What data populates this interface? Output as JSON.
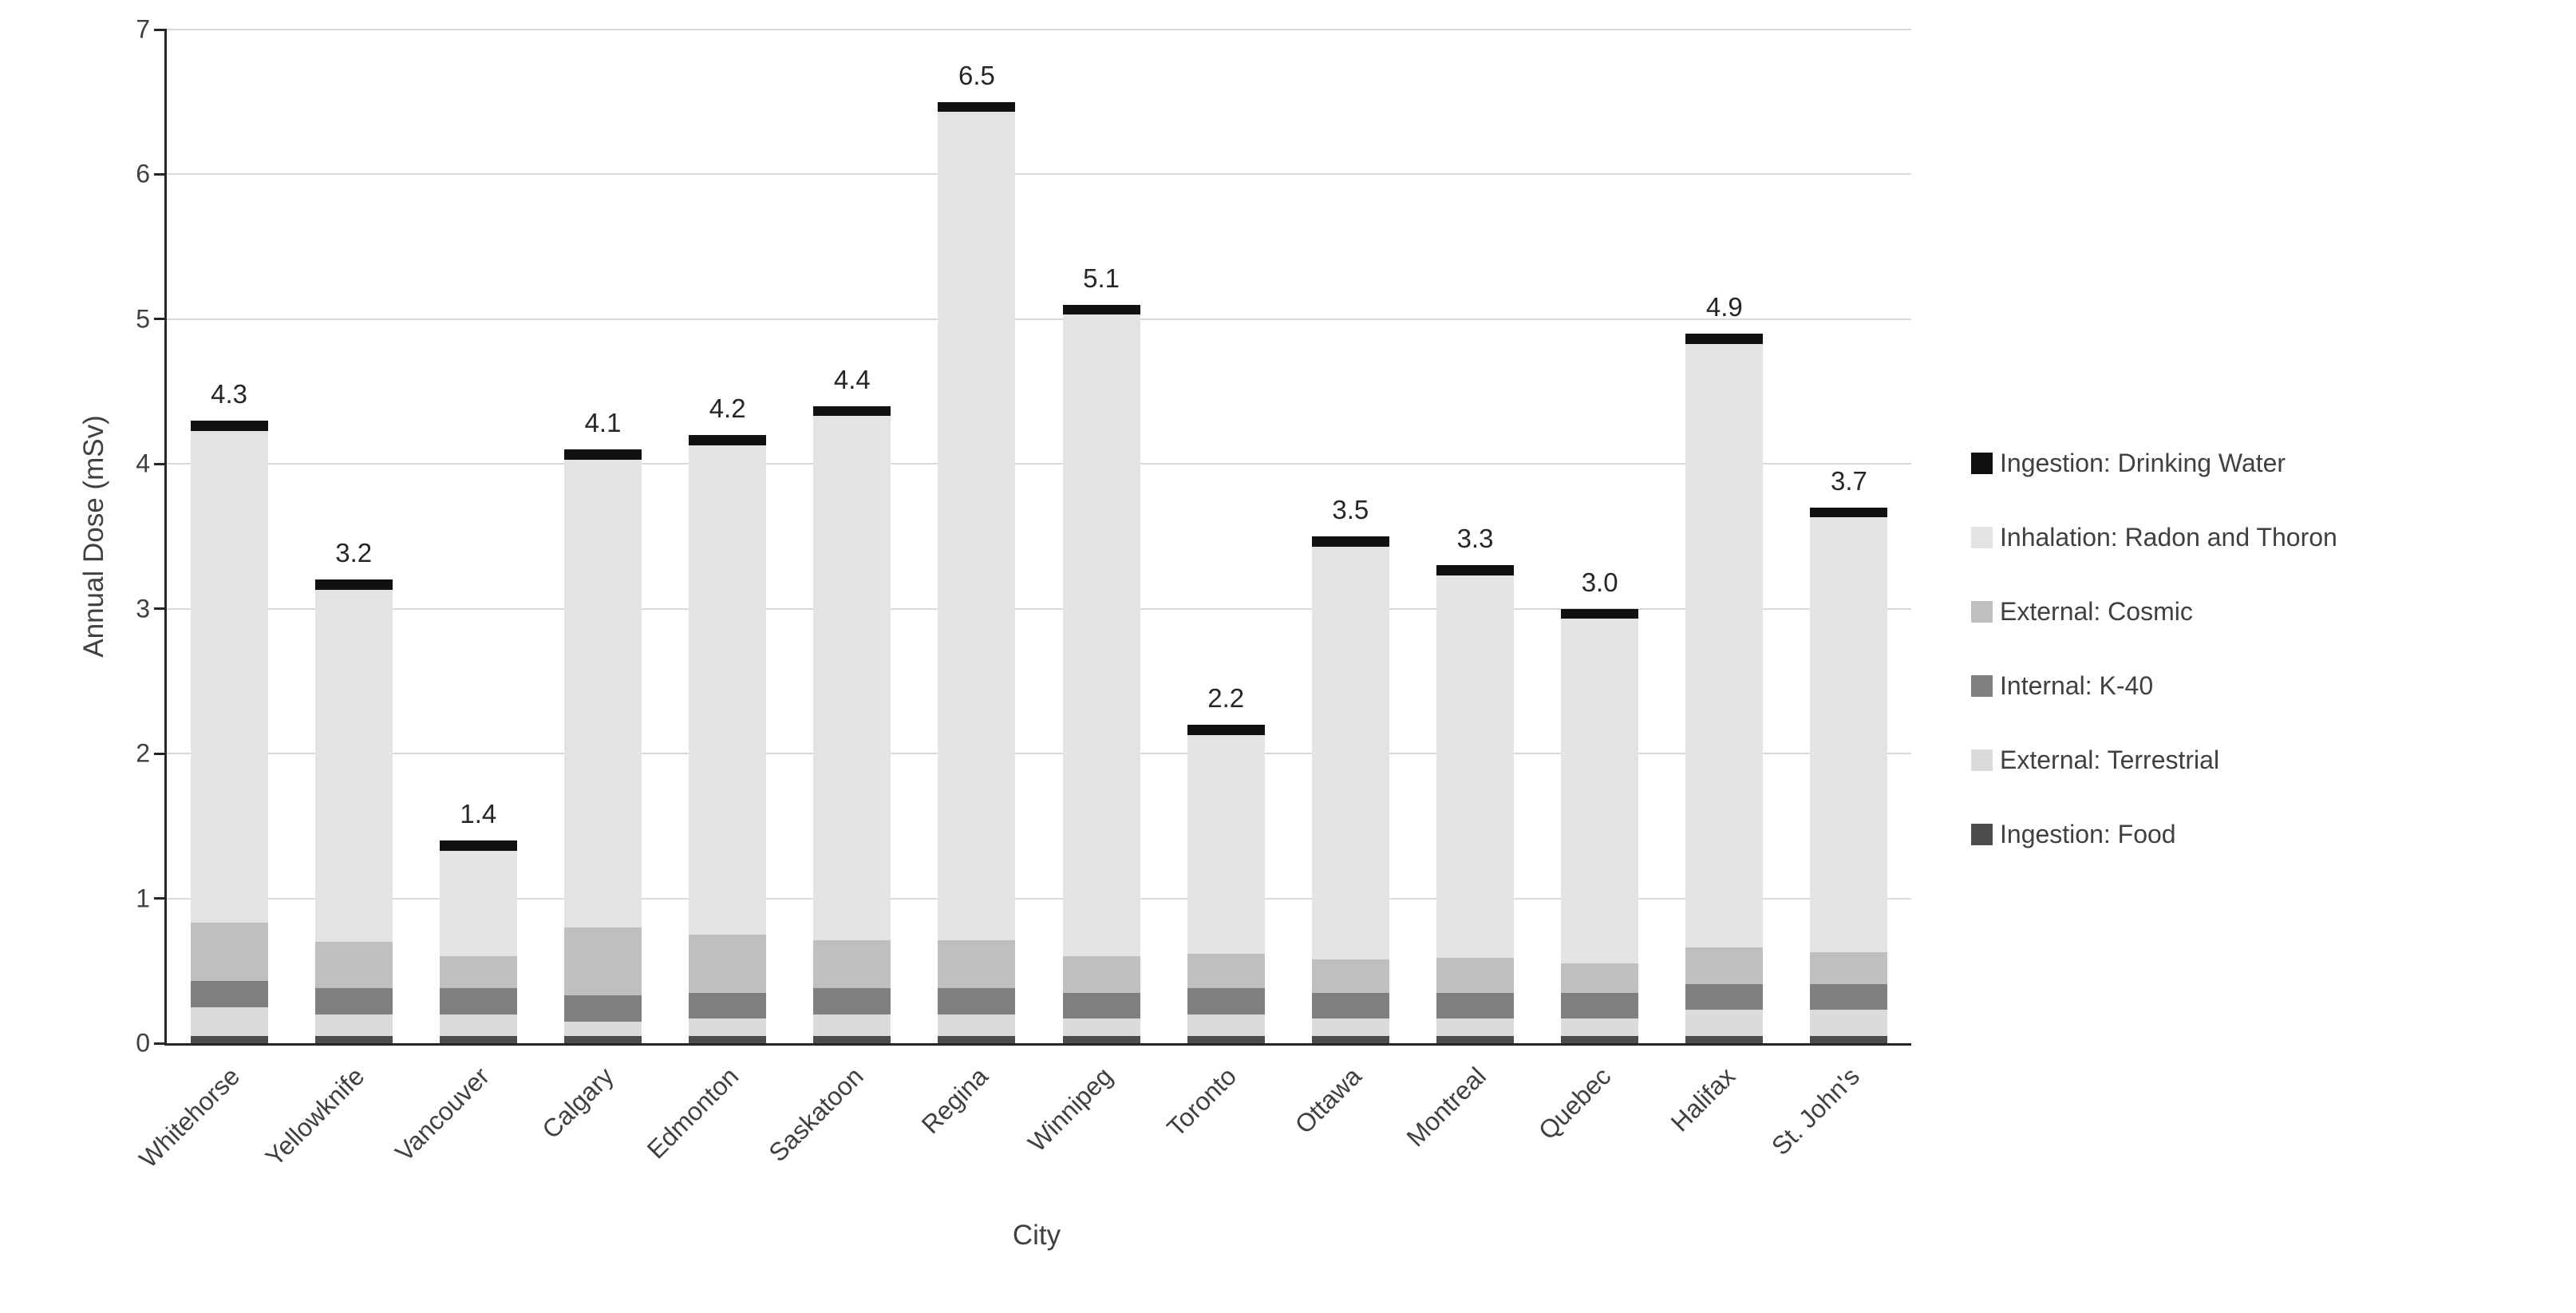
{
  "chart_data": {
    "type": "bar",
    "stacked": true,
    "title": "",
    "xlabel": "City",
    "ylabel": "Annual Dose (mSv)",
    "ylim": [
      0,
      7
    ],
    "yticks": [
      0,
      1,
      2,
      3,
      4,
      5,
      6,
      7
    ],
    "grid": true,
    "legend_position": "right",
    "categories": [
      "Whitehorse",
      "Yellowknife",
      "Vancouver",
      "Calgary",
      "Edmonton",
      "Saskatoon",
      "Regina",
      "Winnipeg",
      "Toronto",
      "Ottawa",
      "Montreal",
      "Quebec",
      "Halifax",
      "St. John's"
    ],
    "totals": [
      "4.3",
      "3.2",
      "1.4",
      "4.1",
      "4.2",
      "4.4",
      "6.5",
      "5.1",
      "2.2",
      "3.5",
      "3.3",
      "3.0",
      "4.9",
      "3.7"
    ],
    "series": [
      {
        "name": "Ingestion: Food",
        "color": "#4d4d4d",
        "values": [
          0.05,
          0.05,
          0.05,
          0.05,
          0.05,
          0.05,
          0.05,
          0.05,
          0.05,
          0.05,
          0.05,
          0.05,
          0.05,
          0.05
        ]
      },
      {
        "name": "External: Terrestrial",
        "color": "#dbdbdb",
        "values": [
          0.2,
          0.15,
          0.15,
          0.1,
          0.12,
          0.15,
          0.15,
          0.12,
          0.15,
          0.12,
          0.12,
          0.12,
          0.18,
          0.18
        ]
      },
      {
        "name": "Internal: K-40",
        "color": "#7f7f7f",
        "values": [
          0.18,
          0.18,
          0.18,
          0.18,
          0.18,
          0.18,
          0.18,
          0.18,
          0.18,
          0.18,
          0.18,
          0.18,
          0.18,
          0.18
        ]
      },
      {
        "name": "External: Cosmic",
        "color": "#bfbfbf",
        "values": [
          0.4,
          0.32,
          0.22,
          0.47,
          0.4,
          0.33,
          0.33,
          0.25,
          0.24,
          0.23,
          0.24,
          0.2,
          0.25,
          0.22
        ]
      },
      {
        "name": "Inhalation: Radon and Thoron",
        "color": "#e3e3e3",
        "values": [
          3.4,
          2.43,
          0.73,
          3.23,
          3.38,
          3.62,
          5.72,
          4.43,
          1.51,
          2.85,
          2.64,
          2.38,
          4.17,
          3.0
        ]
      },
      {
        "name": "Ingestion: Drinking Water",
        "color": "#111111",
        "values": [
          0.07,
          0.07,
          0.07,
          0.07,
          0.07,
          0.07,
          0.07,
          0.07,
          0.07,
          0.07,
          0.07,
          0.07,
          0.07,
          0.07
        ]
      }
    ],
    "legend_note": "Legend lists series top-to-bottom in reverse stacking order"
  }
}
